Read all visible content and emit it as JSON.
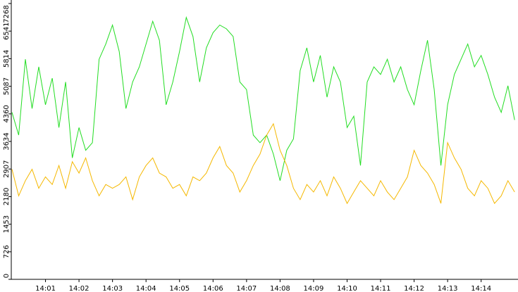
{
  "chart_data": {
    "type": "line",
    "x": [
      0,
      0.2,
      0.4,
      0.6,
      0.8,
      1,
      1.2,
      1.4,
      1.6,
      1.8,
      2,
      2.2,
      2.4,
      2.6,
      2.8,
      3,
      3.2,
      3.4,
      3.6,
      3.8,
      4,
      4.2,
      4.4,
      4.6,
      4.8,
      5,
      5.2,
      5.4,
      5.6,
      5.8,
      6,
      6.2,
      6.4,
      6.6,
      6.8,
      7,
      7.2,
      7.4,
      7.6,
      7.8,
      8,
      8.2,
      8.4,
      8.6,
      8.8,
      9,
      9.2,
      9.4,
      9.6,
      9.8,
      10,
      10.2,
      10.4,
      10.6,
      10.8,
      11,
      11.2,
      11.4,
      11.6,
      11.8,
      12,
      12.2,
      12.4,
      12.6,
      12.8,
      13,
      13.2,
      13.4,
      13.6,
      13.8,
      14,
      14.2,
      14.4,
      14.6,
      14.8,
      15
    ],
    "series": [
      {
        "color": "#22dd22",
        "values": [
          4400,
          3800,
          5800,
          4500,
          5600,
          4600,
          5300,
          4000,
          5200,
          3200,
          4000,
          3400,
          3600,
          5800,
          6200,
          6700,
          6000,
          4500,
          5200,
          5600,
          6200,
          6800,
          6300,
          4600,
          5200,
          6000,
          6900,
          6400,
          5200,
          6100,
          6500,
          6700,
          6600,
          6400,
          5200,
          5000,
          3800,
          3600,
          3800,
          3300,
          2600,
          3400,
          3700,
          5500,
          6100,
          5200,
          5900,
          4800,
          5600,
          5200,
          4000,
          4300,
          3000,
          5200,
          5600,
          5400,
          5800,
          5200,
          5600,
          5000,
          4600,
          5500,
          6300,
          5000,
          3000,
          4600,
          5400,
          5800,
          6200,
          5600,
          5900,
          5400,
          4800,
          4400,
          5100,
          4200
        ]
      },
      {
        "color": "#f5b800",
        "values": [
          2900,
          2200,
          2600,
          2900,
          2400,
          2700,
          2500,
          3000,
          2400,
          3100,
          2800,
          3200,
          2600,
          2200,
          2500,
          2400,
          2500,
          2700,
          2100,
          2700,
          3000,
          3200,
          2800,
          2700,
          2400,
          2500,
          2200,
          2700,
          2600,
          2800,
          3200,
          3500,
          3000,
          2800,
          2300,
          2600,
          3000,
          3300,
          3800,
          4100,
          3400,
          3000,
          2400,
          2100,
          2500,
          2300,
          2600,
          2200,
          2700,
          2400,
          2000,
          2300,
          2600,
          2400,
          2200,
          2600,
          2300,
          2100,
          2400,
          2700,
          3400,
          3000,
          2800,
          2500,
          2000,
          3600,
          3200,
          2900,
          2400,
          2200,
          2600,
          2400,
          2000,
          2200,
          2600,
          2300
        ]
      }
    ],
    "xlim": [
      0,
      15.1
    ],
    "xticks": [
      {
        "value": 1,
        "label": "14:01"
      },
      {
        "value": 2,
        "label": "14:02"
      },
      {
        "value": 3,
        "label": "14:03"
      },
      {
        "value": 4,
        "label": "14:04"
      },
      {
        "value": 5,
        "label": "14:05"
      },
      {
        "value": 6,
        "label": "14:06"
      },
      {
        "value": 7,
        "label": "14:07"
      },
      {
        "value": 8,
        "label": "14:08"
      },
      {
        "value": 9,
        "label": "14:09"
      },
      {
        "value": 10,
        "label": "14:10"
      },
      {
        "value": 11,
        "label": "14:11"
      },
      {
        "value": 12,
        "label": "14:12"
      },
      {
        "value": 13,
        "label": "14:13"
      },
      {
        "value": 14,
        "label": "14:14"
      }
    ],
    "ylim": [
      0,
      7268
    ],
    "yticks": [
      0,
      726,
      1453,
      2180,
      2907,
      3634,
      4360,
      5087,
      5814,
      6541,
      7268
    ]
  }
}
